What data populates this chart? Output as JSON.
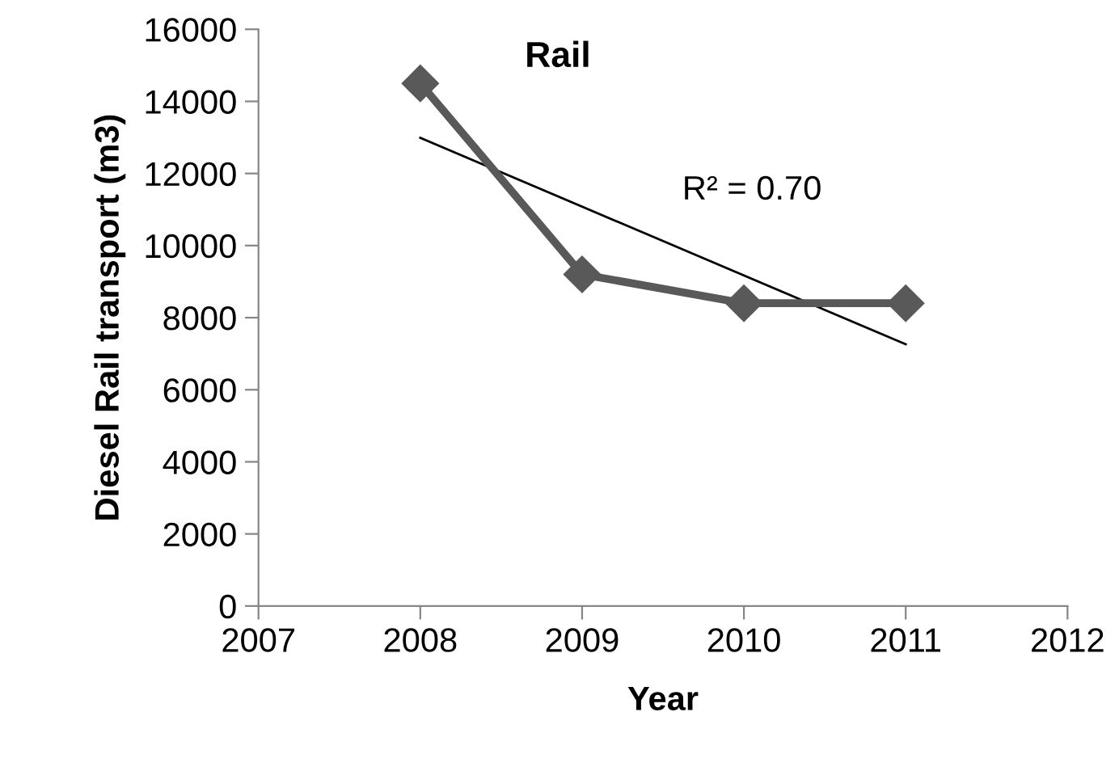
{
  "chart_data": {
    "type": "line",
    "title": "Rail",
    "xlabel": "Year",
    "ylabel": "Diesel Rail transport (m3)",
    "xlim": [
      2007,
      2012
    ],
    "xticks": [
      2007,
      2008,
      2009,
      2010,
      2011,
      2012
    ],
    "ylim": [
      0,
      16000
    ],
    "yticks": [
      0,
      2000,
      4000,
      6000,
      8000,
      10000,
      12000,
      14000,
      16000
    ],
    "grid": false,
    "legend": false,
    "series": [
      {
        "x": [
          2008,
          2009,
          2010,
          2011
        ],
        "values": [
          14500,
          9200,
          8400,
          8400
        ],
        "color": "#595959",
        "marker": "diamond",
        "line_style": "solid"
      },
      {
        "x": [
          2008,
          2011
        ],
        "values": [
          12990,
          7260
        ],
        "color": "#000000",
        "marker": "none",
        "line_style": "solid"
      }
    ],
    "annotations": [
      "R² = 0.70"
    ]
  }
}
